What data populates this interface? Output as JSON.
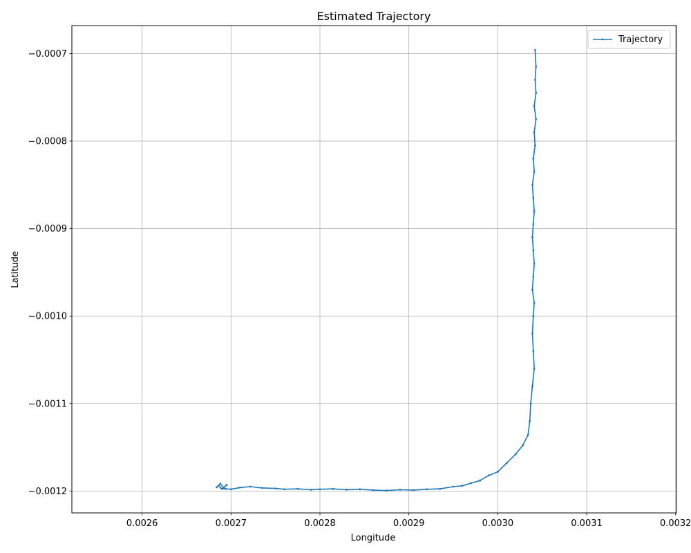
{
  "chart_data": {
    "type": "line",
    "title": "Estimated Trajectory",
    "xlabel": "Longitude",
    "ylabel": "Latitude",
    "xlim": [
      0.002521,
      0.003201
    ],
    "ylim": [
      -0.001225,
      -0.000668
    ],
    "x_ticks": [
      {
        "value": 0.0026,
        "label": "0.0026"
      },
      {
        "value": 0.0027,
        "label": "0.0027"
      },
      {
        "value": 0.0028,
        "label": "0.0028"
      },
      {
        "value": 0.0029,
        "label": "0.0029"
      },
      {
        "value": 0.003,
        "label": "0.0030"
      },
      {
        "value": 0.0031,
        "label": "0.0031"
      },
      {
        "value": 0.0032,
        "label": "0.0032"
      }
    ],
    "y_ticks": [
      {
        "value": -0.0007,
        "label": "−0.0007"
      },
      {
        "value": -0.0008,
        "label": "−0.0008"
      },
      {
        "value": -0.0009,
        "label": "−0.0009"
      },
      {
        "value": -0.001,
        "label": "−0.0010"
      },
      {
        "value": -0.0011,
        "label": "−0.0011"
      },
      {
        "value": -0.0012,
        "label": "−0.0012"
      }
    ],
    "grid": true,
    "legend_position": "upper right",
    "color": "#1f77b4",
    "series": [
      {
        "name": "Trajectory",
        "x": [
          0.002684,
          0.002688,
          0.002692,
          0.002695,
          0.00269,
          0.002686,
          0.002689,
          0.002694,
          0.0027,
          0.00271,
          0.002722,
          0.002735,
          0.00275,
          0.00276,
          0.002775,
          0.00279,
          0.0028,
          0.002815,
          0.00283,
          0.002845,
          0.00286,
          0.002875,
          0.00289,
          0.002905,
          0.00292,
          0.002935,
          0.00295,
          0.00296,
          0.00297,
          0.00298,
          0.00299,
          0.003,
          0.00301,
          0.00302,
          0.003028,
          0.003034,
          0.003036,
          0.003037,
          0.003039,
          0.003041,
          0.00304,
          0.003039,
          0.00304,
          0.003041,
          0.003039,
          0.00304,
          0.003041,
          0.00304,
          0.003039,
          0.00304,
          0.003041,
          0.00304,
          0.003039,
          0.003041,
          0.00304,
          0.003042,
          0.003041,
          0.003043,
          0.003041,
          0.003043,
          0.003042,
          0.003043,
          0.003042
        ],
        "y": [
          -0.0011955,
          -0.0011915,
          -0.0011965,
          -0.001193,
          -0.0011975,
          -0.0011935,
          -0.001197,
          -0.0011975,
          -0.001198,
          -0.001196,
          -0.001195,
          -0.0011965,
          -0.001197,
          -0.001198,
          -0.0011975,
          -0.0011985,
          -0.001198,
          -0.0011975,
          -0.0011985,
          -0.001198,
          -0.001199,
          -0.0011995,
          -0.0011985,
          -0.001199,
          -0.001198,
          -0.0011975,
          -0.001195,
          -0.001194,
          -0.001191,
          -0.001188,
          -0.001182,
          -0.001178,
          -0.001168,
          -0.001158,
          -0.001148,
          -0.001136,
          -0.00112,
          -0.0011,
          -0.00108,
          -0.00106,
          -0.00104,
          -0.00102,
          -0.001,
          -0.000985,
          -0.00097,
          -0.000955,
          -0.00094,
          -0.000925,
          -0.00091,
          -0.000895,
          -0.00088,
          -0.000865,
          -0.00085,
          -0.000835,
          -0.00082,
          -0.000805,
          -0.00079,
          -0.000775,
          -0.00076,
          -0.000745,
          -0.00073,
          -0.000715,
          -0.000696
        ]
      }
    ]
  }
}
